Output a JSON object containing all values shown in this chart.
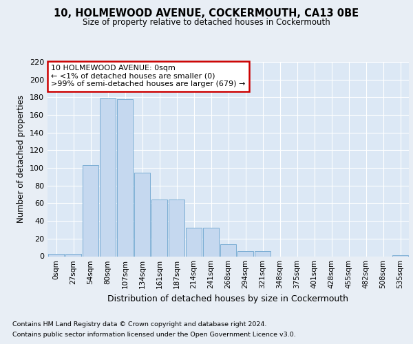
{
  "title1": "10, HOLMEWOOD AVENUE, COCKERMOUTH, CA13 0BE",
  "title2": "Size of property relative to detached houses in Cockermouth",
  "xlabel": "Distribution of detached houses by size in Cockermouth",
  "ylabel": "Number of detached properties",
  "categories": [
    "0sqm",
    "27sqm",
    "54sqm",
    "80sqm",
    "107sqm",
    "134sqm",
    "161sqm",
    "187sqm",
    "214sqm",
    "241sqm",
    "268sqm",
    "294sqm",
    "321sqm",
    "348sqm",
    "375sqm",
    "401sqm",
    "428sqm",
    "455sqm",
    "482sqm",
    "508sqm",
    "535sqm"
  ],
  "values": [
    3,
    3,
    103,
    179,
    178,
    95,
    64,
    64,
    32,
    32,
    14,
    6,
    6,
    0,
    0,
    0,
    0,
    0,
    0,
    0,
    1
  ],
  "bar_color": "#c5d8ef",
  "bar_edge_color": "#7aadd4",
  "annotation_box_color": "#ffffff",
  "annotation_border_color": "#cc0000",
  "annotation_text": "10 HOLMEWOOD AVENUE: 0sqm\n← <1% of detached houses are smaller (0)\n>99% of semi-detached houses are larger (679) →",
  "ylim": [
    0,
    220
  ],
  "yticks": [
    0,
    20,
    40,
    60,
    80,
    100,
    120,
    140,
    160,
    180,
    200,
    220
  ],
  "footer1": "Contains HM Land Registry data © Crown copyright and database right 2024.",
  "footer2": "Contains public sector information licensed under the Open Government Licence v3.0.",
  "bg_color": "#e8eef5",
  "plot_bg_color": "#dce8f5"
}
